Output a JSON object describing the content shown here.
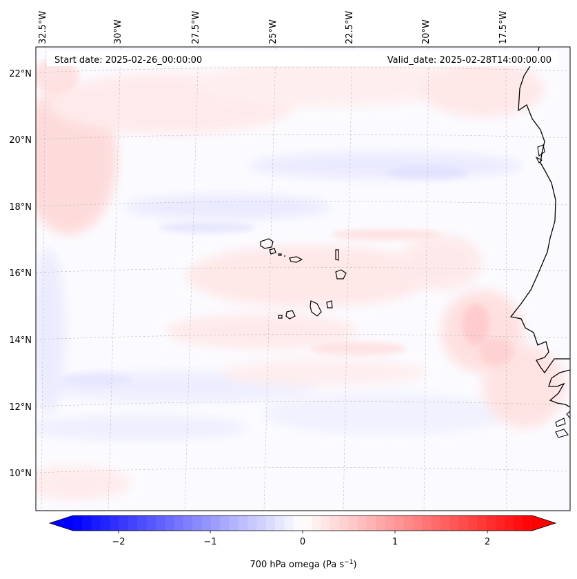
{
  "map": {
    "start_date": "Start date: 2025-02-26_00:00:00",
    "valid_date": "Valid_date: 2025-02-28T14:00:00.00",
    "lon_labels": [
      "32.5°W",
      "30°W",
      "27.5°W",
      "25°W",
      "22.5°W",
      "20°W",
      "17.5°W"
    ],
    "lat_labels": [
      "22°N",
      "20°N",
      "18°N",
      "16°N",
      "14°N",
      "12°N",
      "10°N"
    ],
    "colorbar": {
      "ticks": [
        "−2",
        "−1",
        "0",
        "1",
        "2"
      ],
      "label": "700 hPa omega (Pa s",
      "label_sup": "−1",
      "label_end": ")"
    },
    "colors": {
      "negative": "#0000ff",
      "neutral": "#ffffff",
      "positive": "#ff0000",
      "coastline": "#000000",
      "gridline": "#bbbbbb"
    }
  }
}
